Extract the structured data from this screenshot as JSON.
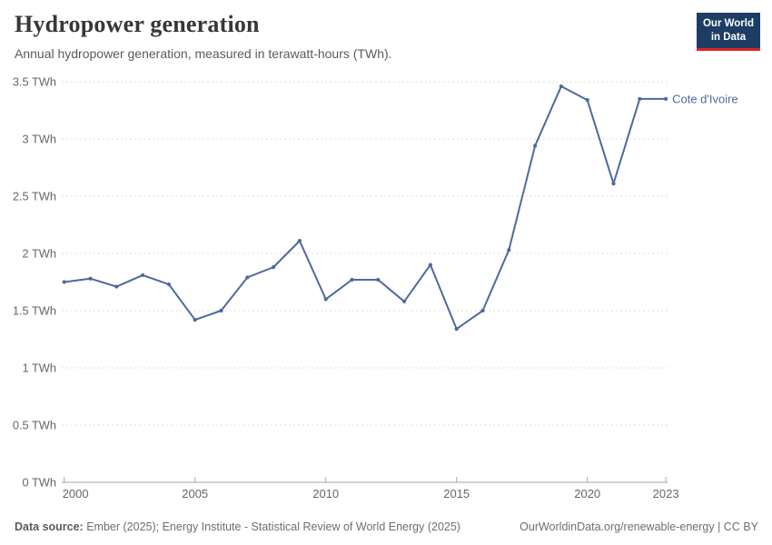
{
  "header": {
    "title": "Hydropower generation",
    "subtitle": "Annual hydropower generation, measured in terawatt-hours (TWh).",
    "logo_line1": "Our World",
    "logo_line2": "in Data"
  },
  "chart_data": {
    "type": "line",
    "title": "Hydropower generation",
    "unit": "TWh",
    "grid": true,
    "legend_position": "end-of-line",
    "x": [
      2000,
      2001,
      2002,
      2003,
      2004,
      2005,
      2006,
      2007,
      2008,
      2009,
      2010,
      2011,
      2012,
      2013,
      2014,
      2015,
      2016,
      2017,
      2018,
      2019,
      2020,
      2021,
      2022,
      2023
    ],
    "series": [
      {
        "name": "Cote d'Ivoire",
        "color": "#4C6A9C",
        "values": [
          1.75,
          1.78,
          1.71,
          1.81,
          1.73,
          1.42,
          1.5,
          1.79,
          1.88,
          2.11,
          1.6,
          1.77,
          1.77,
          1.58,
          1.9,
          1.34,
          1.5,
          2.03,
          2.94,
          3.46,
          3.34,
          2.61,
          3.35,
          3.35
        ]
      }
    ],
    "ylim": [
      0,
      3.5
    ],
    "yticks": [
      0,
      0.5,
      1,
      1.5,
      2,
      2.5,
      3,
      3.5
    ],
    "ytick_labels": [
      "0 TWh",
      "0.5 TWh",
      "1 TWh",
      "1.5 TWh",
      "2 TWh",
      "2.5 TWh",
      "3 TWh",
      "3.5 TWh"
    ],
    "xticks": [
      2000,
      2005,
      2010,
      2015,
      2020,
      2023
    ],
    "xtick_labels": [
      "2000",
      "2005",
      "2010",
      "2015",
      "2020",
      "2023"
    ]
  },
  "footer": {
    "source_label": "Data source:",
    "source_text": "Ember (2025); Energy Institute - Statistical Review of World Energy (2025)",
    "link": "OurWorldinData.org/renewable-energy | CC BY"
  },
  "colors": {
    "line": "#4C6A9C",
    "grid": "#dddddd",
    "axis": "#a6a6a6",
    "tick_text": "#666666",
    "logo_bg": "#1d3d63",
    "logo_stripe": "#dc2426"
  }
}
